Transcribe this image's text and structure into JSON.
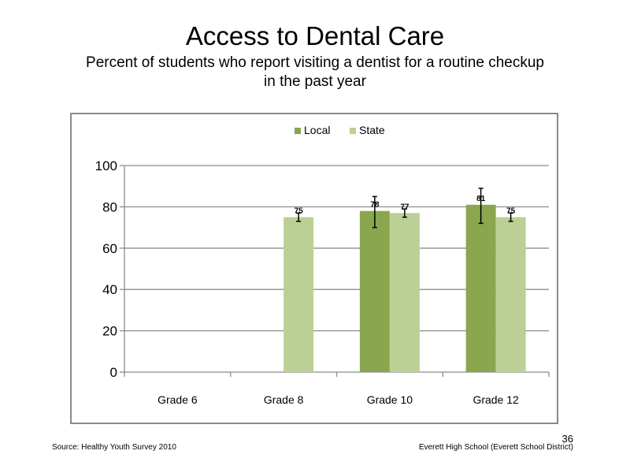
{
  "page": {
    "title": "Access to Dental Care",
    "subtitle": "Percent of students who report visiting a dentist for a routine checkup in the past year",
    "source": "Source: Healthy Youth Survey 2010",
    "school": "Everett High School (Everett School District)",
    "page_number": "36"
  },
  "chart_data": {
    "type": "bar",
    "title": "",
    "xlabel": "",
    "ylabel": "",
    "ylim": [
      0,
      100
    ],
    "yticks": [
      0,
      20,
      40,
      60,
      80,
      100
    ],
    "grid": true,
    "legend_position": "top-center",
    "categories": [
      "Grade 6",
      "Grade 8",
      "Grade 10",
      "Grade 12"
    ],
    "series": [
      {
        "name": "Local",
        "color": "#8aa64e",
        "values": [
          null,
          null,
          78,
          81
        ],
        "labels": [
          "",
          "",
          "78",
          "81"
        ],
        "error_low": [
          null,
          null,
          70,
          72
        ],
        "error_high": [
          null,
          null,
          85,
          89
        ]
      },
      {
        "name": "State",
        "color": "#bccf94",
        "values": [
          null,
          75,
          77,
          75
        ],
        "labels": [
          "",
          "75",
          "77",
          "75"
        ],
        "error_low": [
          null,
          73,
          75,
          73
        ],
        "error_high": [
          null,
          77,
          79,
          77
        ]
      }
    ]
  }
}
